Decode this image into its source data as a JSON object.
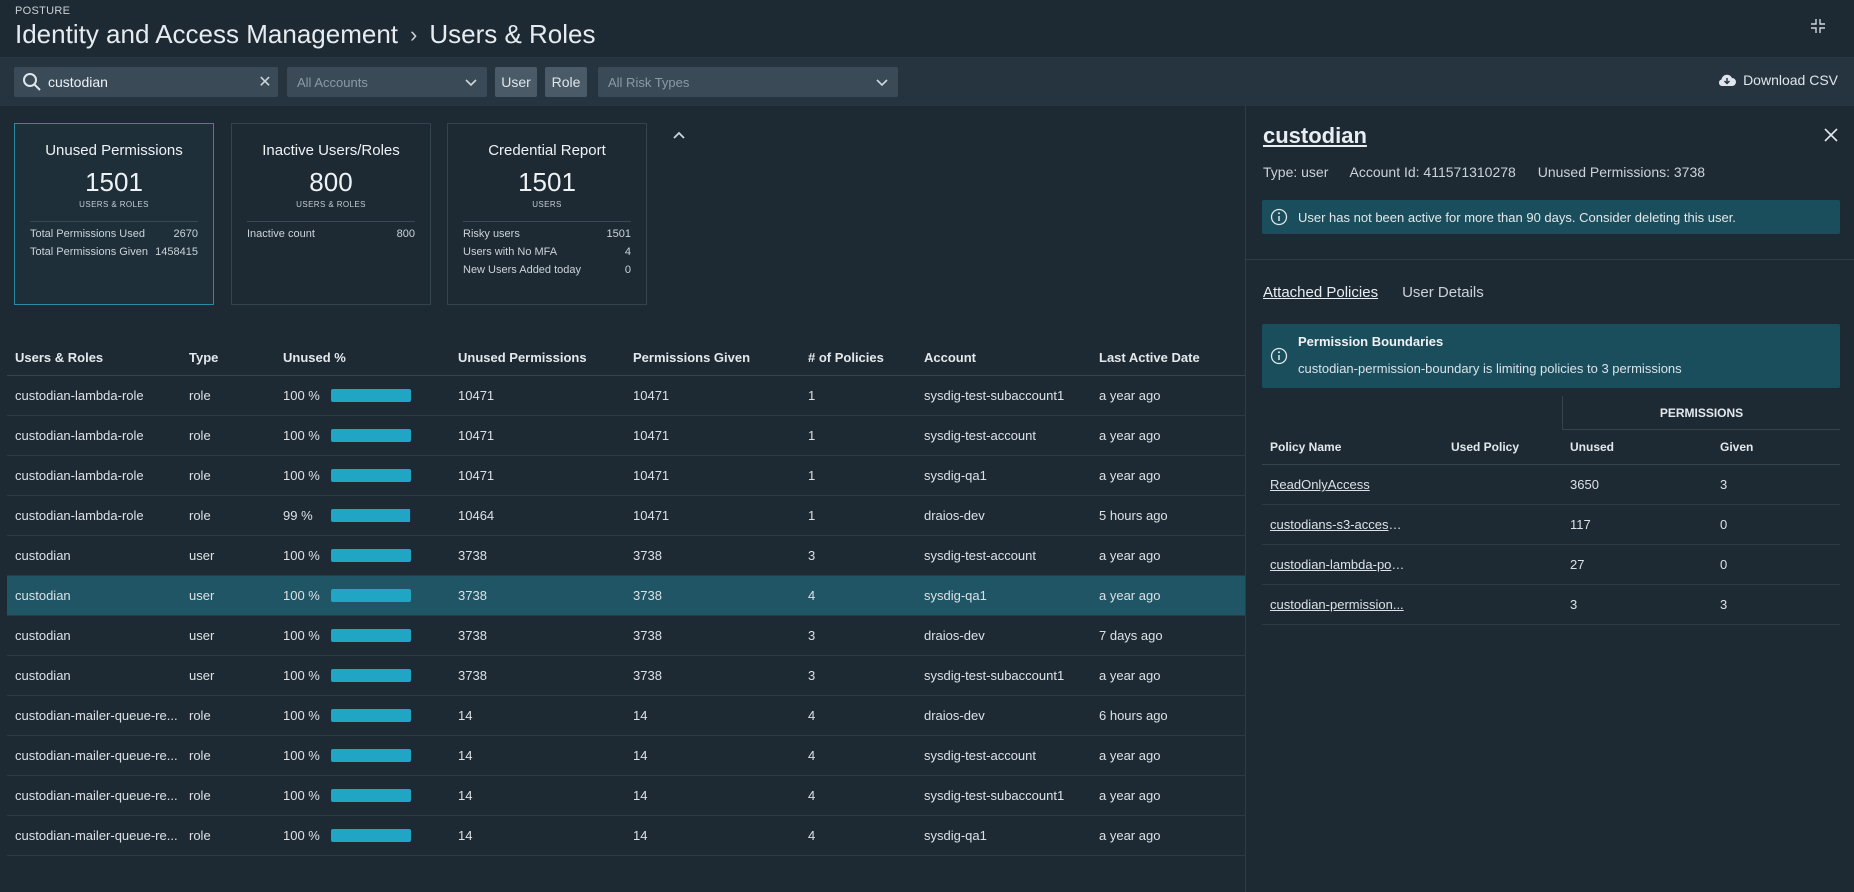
{
  "header": {
    "eyebrow": "POSTURE",
    "breadcrumb": [
      "Identity and Access Management",
      "Users & Roles"
    ]
  },
  "toolbar": {
    "search_value": "custodian",
    "accounts_placeholder": "All Accounts",
    "user_filter": "User",
    "role_filter": "Role",
    "risk_placeholder": "All Risk Types",
    "download_label": "Download CSV"
  },
  "cards": [
    {
      "title": "Unused Permissions",
      "value": "1501",
      "unit": "USERS & ROLES",
      "rows": [
        {
          "label": "Total Permissions Used",
          "value": "2670"
        },
        {
          "label": "Total Permissions Given",
          "value": "1458415"
        }
      ]
    },
    {
      "title": "Inactive Users/Roles",
      "value": "800",
      "unit": "USERS & ROLES",
      "rows": [
        {
          "label": "Inactive count",
          "value": "800"
        }
      ]
    },
    {
      "title": "Credential Report",
      "value": "1501",
      "unit": "USERS",
      "rows": [
        {
          "label": "Risky users",
          "value": "1501"
        },
        {
          "label": "Users with No MFA",
          "value": "4"
        },
        {
          "label": "New Users Added today",
          "value": "0"
        }
      ]
    }
  ],
  "table": {
    "columns": [
      "Users & Roles",
      "Type",
      "Unused %",
      "Unused Permissions",
      "Permissions Given",
      "# of Policies",
      "Account",
      "Last Active Date"
    ],
    "rows": [
      {
        "name": "custodian-lambda-role",
        "type": "role",
        "pct": "100 %",
        "fill": 1.0,
        "unused": "10471",
        "given": "10471",
        "policies": "1",
        "account": "sysdig-test-subaccount1",
        "last": "a year ago"
      },
      {
        "name": "custodian-lambda-role",
        "type": "role",
        "pct": "100 %",
        "fill": 1.0,
        "unused": "10471",
        "given": "10471",
        "policies": "1",
        "account": "sysdig-test-account",
        "last": "a year ago"
      },
      {
        "name": "custodian-lambda-role",
        "type": "role",
        "pct": "100 %",
        "fill": 1.0,
        "unused": "10471",
        "given": "10471",
        "policies": "1",
        "account": "sysdig-qa1",
        "last": "a year ago"
      },
      {
        "name": "custodian-lambda-role",
        "type": "role",
        "pct": "99 %",
        "fill": 0.99,
        "unused": "10464",
        "given": "10471",
        "policies": "1",
        "account": "draios-dev",
        "last": "5 hours ago"
      },
      {
        "name": "custodian",
        "type": "user",
        "pct": "100 %",
        "fill": 1.0,
        "unused": "3738",
        "given": "3738",
        "policies": "3",
        "account": "sysdig-test-account",
        "last": "a year ago"
      },
      {
        "name": "custodian",
        "type": "user",
        "pct": "100 %",
        "fill": 1.0,
        "unused": "3738",
        "given": "3738",
        "policies": "4",
        "account": "sysdig-qa1",
        "last": "a year ago",
        "selected": true
      },
      {
        "name": "custodian",
        "type": "user",
        "pct": "100 %",
        "fill": 1.0,
        "unused": "3738",
        "given": "3738",
        "policies": "3",
        "account": "draios-dev",
        "last": "7 days ago"
      },
      {
        "name": "custodian",
        "type": "user",
        "pct": "100 %",
        "fill": 1.0,
        "unused": "3738",
        "given": "3738",
        "policies": "3",
        "account": "sysdig-test-subaccount1",
        "last": "a year ago"
      },
      {
        "name": "custodian-mailer-queue-re...",
        "type": "role",
        "pct": "100 %",
        "fill": 1.0,
        "unused": "14",
        "given": "14",
        "policies": "4",
        "account": "draios-dev",
        "last": "6 hours ago"
      },
      {
        "name": "custodian-mailer-queue-re...",
        "type": "role",
        "pct": "100 %",
        "fill": 1.0,
        "unused": "14",
        "given": "14",
        "policies": "4",
        "account": "sysdig-test-account",
        "last": "a year ago"
      },
      {
        "name": "custodian-mailer-queue-re...",
        "type": "role",
        "pct": "100 %",
        "fill": 1.0,
        "unused": "14",
        "given": "14",
        "policies": "4",
        "account": "sysdig-test-subaccount1",
        "last": "a year ago"
      },
      {
        "name": "custodian-mailer-queue-re...",
        "type": "role",
        "pct": "100 %",
        "fill": 1.0,
        "unused": "14",
        "given": "14",
        "policies": "4",
        "account": "sysdig-qa1",
        "last": "a year ago"
      }
    ]
  },
  "detail": {
    "title": "custodian",
    "type": "Type: user",
    "account": "Account Id: 411571310278",
    "unused": "Unused Permissions: 3738",
    "alert": "User has not been active for more than 90 days. Consider deleting this user.",
    "tabs": [
      "Attached Policies",
      "User Details"
    ],
    "boundary_title": "Permission Boundaries",
    "boundary_text": "custodian-permission-boundary is limiting policies to 3 permissions",
    "permissions_header": "PERMISSIONS",
    "policy_columns": [
      "Policy Name",
      "Used Policy",
      "Unused",
      "Given"
    ],
    "policies": [
      {
        "name": "ReadOnlyAccess",
        "used": "",
        "unused": "3650",
        "given": "3"
      },
      {
        "name": "custodians-s3-access...",
        "used": "",
        "unused": "117",
        "given": "0"
      },
      {
        "name": "custodian-lambda-pol...",
        "used": "",
        "unused": "27",
        "given": "0"
      },
      {
        "name": "custodian-permission...",
        "used": "",
        "unused": "3",
        "given": "3"
      }
    ]
  },
  "colors": {
    "accent": "#21a5c4",
    "selected_row": "#1f5565",
    "alert_bg": "#1b4e5c",
    "page_bg": "#1e2a33"
  }
}
